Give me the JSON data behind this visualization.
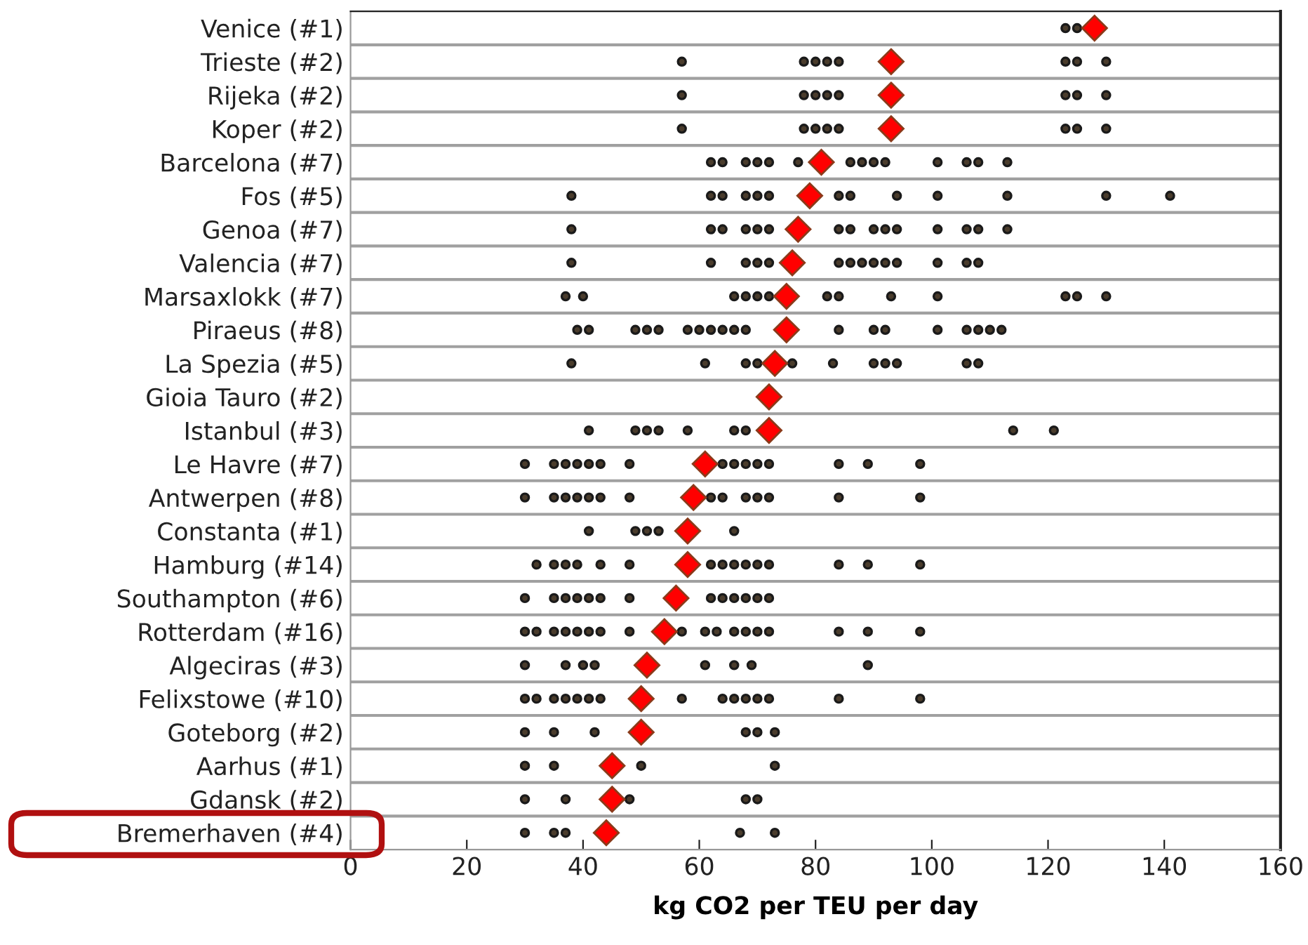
{
  "chart_data": {
    "type": "scatter",
    "orientation": "horizontal",
    "xlabel": "kg CO2 per TEU per day",
    "categories": [
      "Venice (#1)",
      "Trieste (#2)",
      "Rijeka (#2)",
      "Koper (#2)",
      "Barcelona (#7)",
      "Fos (#5)",
      "Genoa (#7)",
      "Valencia (#7)",
      "Marsaxlokk (#7)",
      "Piraeus (#8)",
      "La Spezia (#5)",
      "Gioia Tauro (#2)",
      "Istanbul (#3)",
      "Le Havre (#7)",
      "Antwerpen (#8)",
      "Constanta (#1)",
      "Hamburg (#14)",
      "Southampton (#6)",
      "Rotterdam (#16)",
      "Algeciras (#3)",
      "Felixstowe (#10)",
      "Goteborg (#2)",
      "Aarhus (#1)",
      "Gdansk (#2)",
      "Bremerhaven (#4)"
    ],
    "xlim": [
      0,
      160
    ],
    "xticks": [
      0,
      20,
      40,
      60,
      80,
      100,
      120,
      140,
      160
    ],
    "grid": "y",
    "series": [
      {
        "color": "#4a3c2c",
        "marker": "circle",
        "values": [
          123,
          57,
          57,
          57,
          62,
          38,
          38,
          38,
          37,
          39,
          38,
          null,
          41,
          30,
          30,
          41,
          32,
          30,
          30,
          30,
          30,
          30,
          30,
          30,
          30
        ]
      },
      {
        "color": "#4a3c2c",
        "marker": "circle",
        "values": [
          125,
          78,
          78,
          78,
          64,
          62,
          62,
          62,
          40,
          41,
          61,
          null,
          49,
          35,
          35,
          49,
          35,
          35,
          32,
          37,
          32,
          35,
          35,
          37,
          35
        ]
      },
      {
        "color": "#4a3c2c",
        "marker": "circle",
        "values": [
          null,
          80,
          80,
          80,
          68,
          64,
          64,
          68,
          66,
          49,
          68,
          null,
          51,
          37,
          37,
          51,
          37,
          37,
          35,
          40,
          35,
          42,
          50,
          48,
          37
        ]
      },
      {
        "color": "#4a3c2c",
        "marker": "circle",
        "values": [
          null,
          82,
          82,
          82,
          70,
          68,
          68,
          70,
          68,
          51,
          70,
          null,
          53,
          39,
          39,
          53,
          39,
          39,
          37,
          42,
          37,
          68,
          73,
          68,
          67
        ]
      },
      {
        "color": "#4a3c2c",
        "marker": "circle",
        "values": [
          null,
          84,
          84,
          84,
          72,
          70,
          70,
          72,
          70,
          53,
          76,
          null,
          58,
          41,
          41,
          66,
          43,
          41,
          39,
          61,
          39,
          70,
          null,
          70,
          73
        ]
      },
      {
        "color": "#4a3c2c",
        "marker": "circle",
        "values": [
          null,
          123,
          123,
          123,
          77,
          72,
          72,
          84,
          72,
          58,
          83,
          null,
          66,
          43,
          43,
          null,
          48,
          43,
          41,
          66,
          41,
          73,
          null,
          null,
          null
        ]
      },
      {
        "color": "#4a3c2c",
        "marker": "circle",
        "values": [
          null,
          125,
          125,
          125,
          86,
          84,
          84,
          86,
          82,
          60,
          90,
          null,
          68,
          48,
          48,
          null,
          62,
          48,
          43,
          69,
          43,
          null,
          null,
          null,
          null
        ]
      },
      {
        "color": "#4a3c2c",
        "marker": "circle",
        "values": [
          null,
          130,
          130,
          130,
          88,
          86,
          86,
          88,
          84,
          62,
          92,
          null,
          114,
          64,
          62,
          null,
          64,
          62,
          48,
          89,
          57,
          null,
          null,
          null,
          null
        ]
      },
      {
        "color": "#4a3c2c",
        "marker": "circle",
        "values": [
          null,
          null,
          null,
          null,
          90,
          94,
          90,
          90,
          93,
          64,
          94,
          null,
          121,
          66,
          64,
          null,
          66,
          64,
          57,
          null,
          64,
          null,
          null,
          null,
          null
        ]
      },
      {
        "color": "#4a3c2c",
        "marker": "circle",
        "values": [
          null,
          null,
          null,
          null,
          92,
          101,
          92,
          92,
          101,
          66,
          106,
          null,
          null,
          68,
          68,
          null,
          68,
          66,
          61,
          null,
          66,
          null,
          null,
          null,
          null
        ]
      },
      {
        "color": "#4a3c2c",
        "marker": "circle",
        "values": [
          null,
          null,
          null,
          null,
          101,
          113,
          94,
          94,
          123,
          68,
          108,
          null,
          null,
          70,
          70,
          null,
          70,
          68,
          63,
          null,
          68,
          null,
          null,
          null,
          null
        ]
      },
      {
        "color": "#4a3c2c",
        "marker": "circle",
        "values": [
          null,
          null,
          null,
          null,
          106,
          130,
          101,
          101,
          125,
          84,
          null,
          null,
          null,
          72,
          72,
          null,
          72,
          70,
          66,
          null,
          70,
          null,
          null,
          null,
          null
        ]
      },
      {
        "color": "#4a3c2c",
        "marker": "circle",
        "values": [
          null,
          null,
          null,
          null,
          108,
          141,
          106,
          106,
          130,
          90,
          null,
          null,
          null,
          84,
          84,
          null,
          84,
          72,
          68,
          null,
          72,
          null,
          null,
          null,
          null
        ]
      },
      {
        "color": "#4a3c2c",
        "marker": "circle",
        "values": [
          null,
          null,
          null,
          null,
          113,
          null,
          108,
          108,
          null,
          92,
          null,
          null,
          null,
          89,
          98,
          null,
          89,
          null,
          70,
          null,
          84,
          null,
          null,
          null,
          null
        ]
      },
      {
        "color": "#4a3c2c",
        "marker": "circle",
        "values": [
          null,
          null,
          null,
          null,
          null,
          null,
          113,
          null,
          null,
          101,
          null,
          null,
          null,
          98,
          null,
          null,
          98,
          null,
          72,
          null,
          98,
          null,
          null,
          null,
          null
        ]
      },
      {
        "color": "#4a3c2c",
        "marker": "circle",
        "values": [
          null,
          null,
          null,
          null,
          null,
          null,
          null,
          null,
          null,
          106,
          null,
          null,
          null,
          null,
          null,
          null,
          null,
          null,
          84,
          null,
          null,
          null,
          null,
          null,
          null
        ]
      },
      {
        "color": "#4a3c2c",
        "marker": "circle",
        "values": [
          null,
          null,
          null,
          null,
          null,
          null,
          null,
          null,
          null,
          108,
          null,
          null,
          null,
          null,
          null,
          null,
          null,
          null,
          89,
          null,
          null,
          null,
          null,
          null,
          null
        ]
      },
      {
        "color": "#4a3c2c",
        "marker": "circle",
        "values": [
          null,
          null,
          null,
          null,
          null,
          null,
          null,
          null,
          null,
          110,
          null,
          null,
          null,
          null,
          null,
          null,
          null,
          null,
          98,
          null,
          null,
          null,
          null,
          null,
          null
        ]
      },
      {
        "color": "#4a3c2c",
        "marker": "circle",
        "values": [
          null,
          null,
          null,
          null,
          null,
          null,
          null,
          null,
          null,
          112,
          null,
          null,
          null,
          null,
          null,
          null,
          null,
          null,
          null,
          null,
          null,
          null,
          null,
          null,
          null
        ]
      },
      {
        "color": "#ff0000",
        "marker": "diamond",
        "values": [
          128,
          93,
          93,
          93,
          81,
          79,
          77,
          76,
          75,
          75,
          73,
          72,
          72,
          61,
          59,
          58,
          58,
          56,
          54,
          51,
          50,
          50,
          45,
          45,
          44
        ]
      }
    ]
  }
}
